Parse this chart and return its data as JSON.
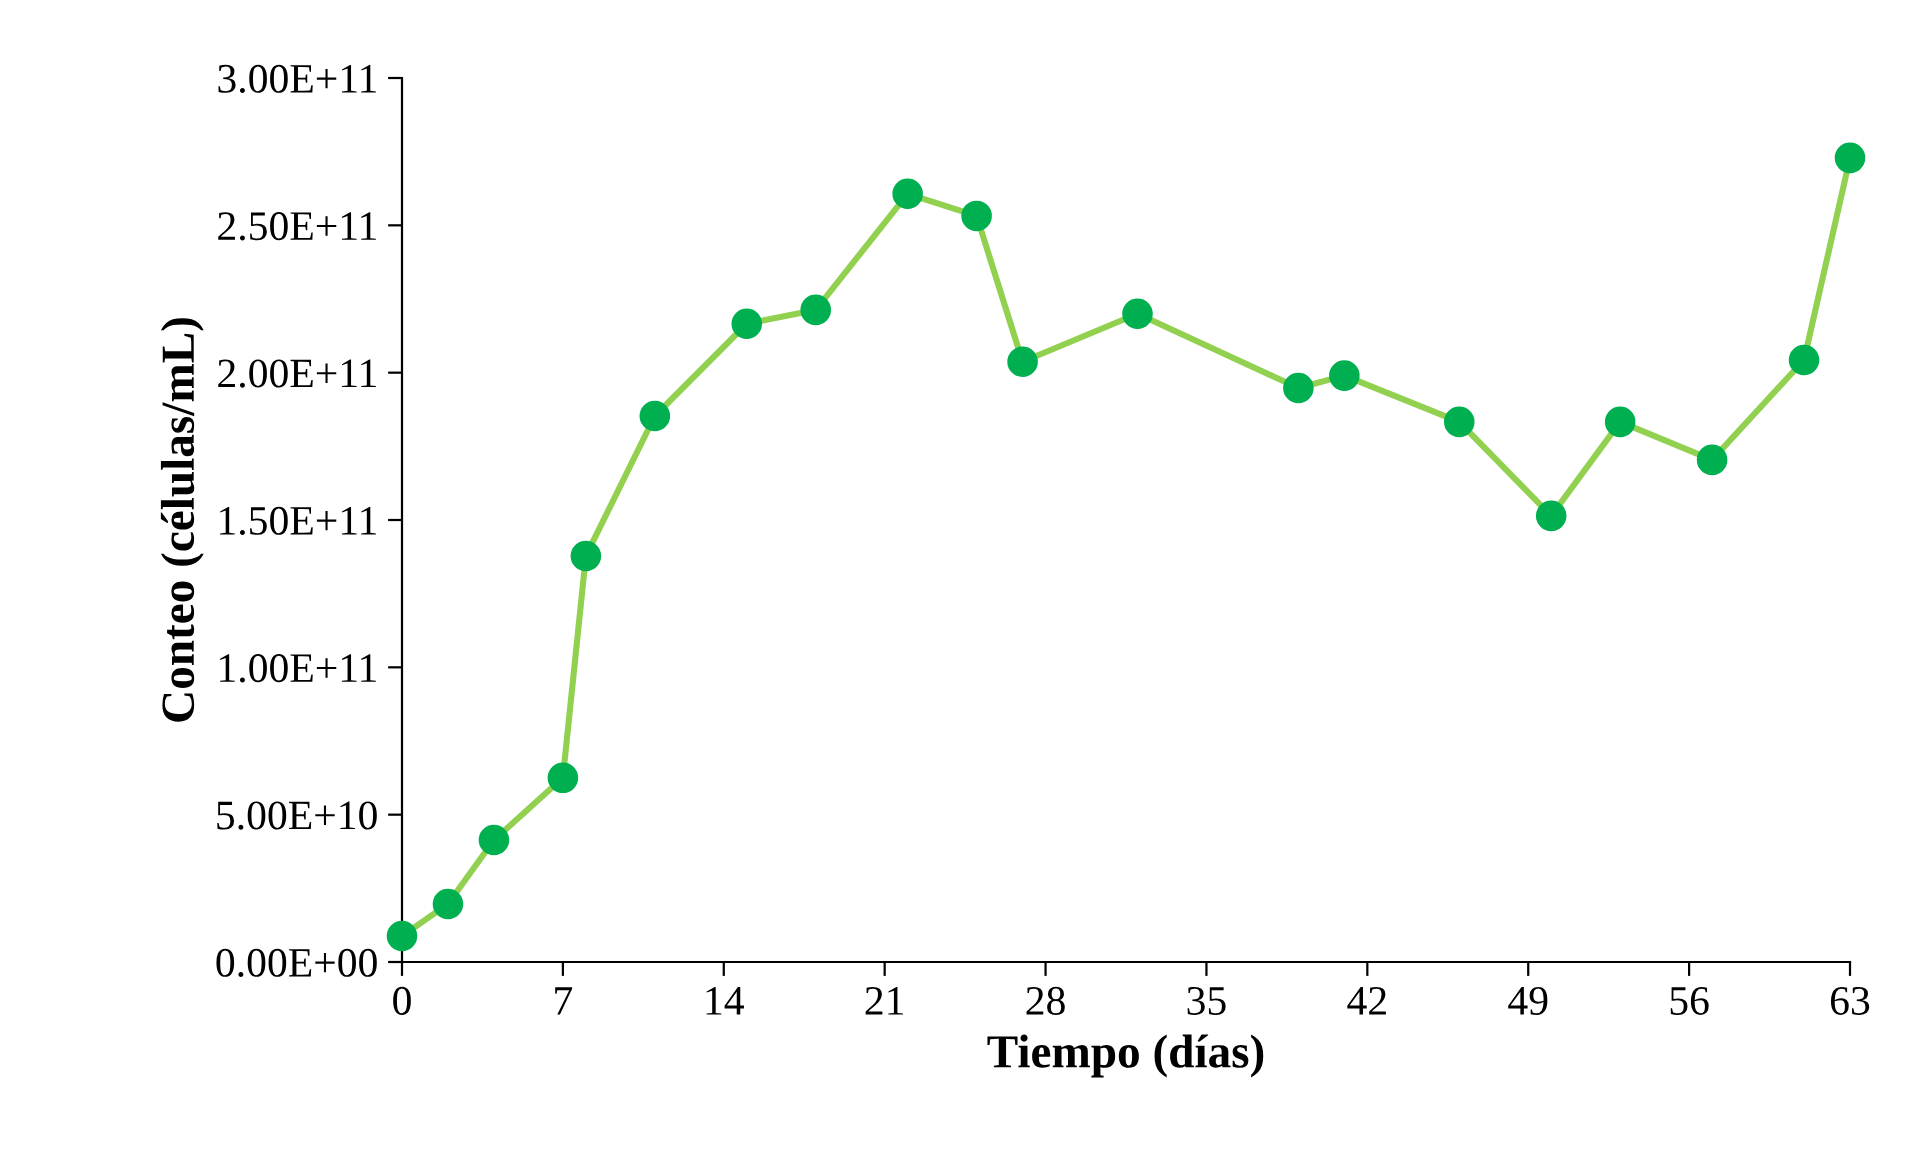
{
  "chart_data": {
    "type": "line",
    "xlabel": "Tiempo (días)",
    "ylabel": "Conteo (células/mL)",
    "x": [
      0,
      2,
      4,
      7,
      8,
      11,
      15,
      18,
      22,
      25,
      27,
      32,
      39,
      41,
      46,
      50,
      53,
      57,
      61,
      63
    ],
    "series": [
      {
        "color": "#92d050",
        "colors": [
          "#00b050",
          "#00b050",
          "#00b050",
          "#00b050",
          "#00b050",
          "#00b050",
          "#00b050",
          "#00b050",
          "#00b050",
          "#00b050",
          "#00b050",
          "#00b050",
          "#00b050",
          "#00b050",
          "#00b050",
          "#00b050",
          "#00b050",
          "#00b050",
          "#00b050",
          "#00b050"
        ],
        "values": [
          8800000000.0,
          19700000000.0,
          41400000000.0,
          62500000000.0,
          137800000000.0,
          185300000000.0,
          216600000000.0,
          221300000000.0,
          260700000000.0,
          253200000000.0,
          203700000000.0,
          220000000000.0,
          194800000000.0,
          199000000000.0,
          183300000000.0,
          151400000000.0,
          183300000000.0,
          170400000000.0,
          204300000000.0,
          272900000000.0
        ]
      }
    ],
    "marker": "circle",
    "line_style": "solid",
    "grid": false,
    "legend": false,
    "xlim": [
      0,
      63
    ],
    "xticks": [
      0,
      7,
      14,
      21,
      28,
      35,
      42,
      49,
      56,
      63
    ],
    "ylim": [
      0,
      300000000000.0
    ],
    "yticks": [
      {
        "value": 0,
        "label": "0.00E+00"
      },
      {
        "value": 50000000000.0,
        "label": "5.00E+10"
      },
      {
        "value": 100000000000.0,
        "label": "1.00E+11"
      },
      {
        "value": 150000000000.0,
        "label": "1.50E+11"
      },
      {
        "value": 200000000000.0,
        "label": "2.00E+11"
      },
      {
        "value": 250000000000.0,
        "label": "2.50E+11"
      },
      {
        "value": 300000000000.0,
        "label": "3.00E+11"
      }
    ]
  }
}
